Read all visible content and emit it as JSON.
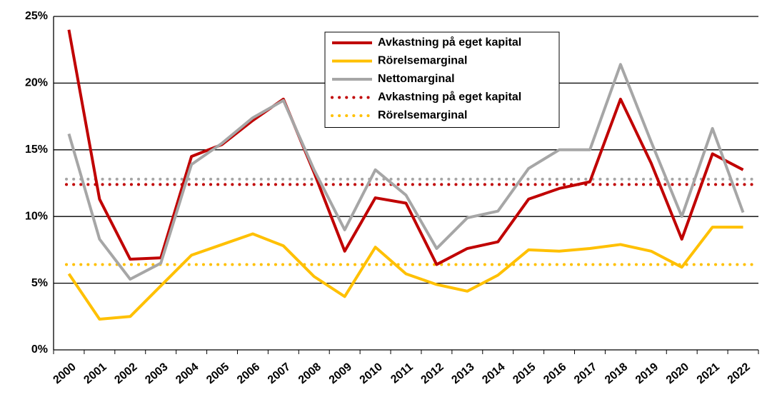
{
  "chart_data": {
    "type": "line",
    "categories": [
      "2000",
      "2001",
      "2002",
      "2003",
      "2004",
      "2005",
      "2006",
      "2007",
      "2008",
      "2009",
      "2010",
      "2011",
      "2012",
      "2013",
      "2014",
      "2015",
      "2016",
      "2017",
      "2018",
      "2019",
      "2020",
      "2021",
      "2022"
    ],
    "series": [
      {
        "name": "Avkastning på eget kapital",
        "color": "#c00000",
        "values": [
          24.0,
          11.3,
          6.8,
          6.9,
          14.5,
          15.4,
          17.2,
          18.8,
          13.3,
          7.4,
          11.4,
          11.0,
          6.4,
          7.6,
          8.1,
          11.3,
          12.1,
          12.6,
          18.8,
          14.0,
          8.3,
          14.7,
          13.5
        ]
      },
      {
        "name": "Rörelsemarginal",
        "color": "#ffc000",
        "values": [
          5.7,
          2.3,
          2.5,
          4.8,
          7.1,
          7.9,
          8.7,
          7.8,
          5.5,
          4.0,
          7.7,
          5.7,
          4.9,
          4.4,
          5.6,
          7.5,
          7.4,
          7.6,
          7.9,
          7.4,
          6.2,
          9.2,
          9.2
        ]
      },
      {
        "name": "Nettomarginal",
        "color": "#a6a6a6",
        "values": [
          16.2,
          8.3,
          5.3,
          6.5,
          13.9,
          15.5,
          17.4,
          18.7,
          13.5,
          9.0,
          13.5,
          11.6,
          7.6,
          9.9,
          10.4,
          13.6,
          15.0,
          15.0,
          21.4,
          15.6,
          10.0,
          16.6,
          10.3
        ]
      }
    ],
    "hlines": [
      {
        "color": "#a6a6a6",
        "value": 12.8
      },
      {
        "name": "Avkastning på eget kapital",
        "color": "#c00000",
        "value": 12.4
      },
      {
        "name": "Rörelsemarginal",
        "color": "#ffc000",
        "value": 6.4
      }
    ],
    "ylim": [
      0,
      25
    ],
    "yticks": [
      {
        "value": 0,
        "label": "0%"
      },
      {
        "value": 5,
        "label": "5%"
      },
      {
        "value": 10,
        "label": "10%"
      },
      {
        "value": 15,
        "label": "15%"
      },
      {
        "value": 20,
        "label": "20%"
      },
      {
        "value": 25,
        "label": "25%"
      }
    ],
    "grid": true
  }
}
